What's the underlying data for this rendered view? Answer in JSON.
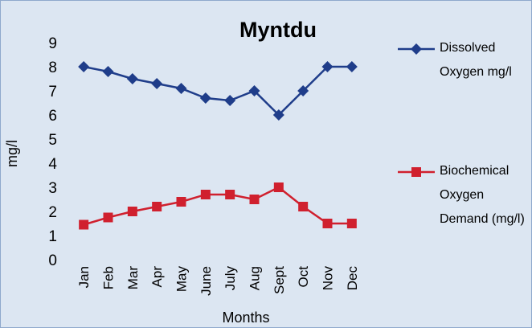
{
  "chart_data": {
    "type": "line",
    "title": "Myntdu",
    "x_label": "Months",
    "y_label": "mg/l",
    "categories": [
      "Jan",
      "Feb",
      "Mar",
      "Apr",
      "May",
      "June",
      "July",
      "Aug",
      "Sept",
      "Oct",
      "Nov",
      "Dec"
    ],
    "series": [
      {
        "name": "Dissolved Oxygen mg/l",
        "color": "#1f3d8a",
        "marker": "diamond",
        "values": [
          8,
          7.8,
          7.5,
          7.3,
          7.1,
          6.7,
          6.6,
          7,
          6,
          7,
          8,
          8
        ]
      },
      {
        "name": "Biochemical Oxygen Demand (mg/l)",
        "color": "#d0202e",
        "marker": "square",
        "values": [
          1.45,
          1.75,
          2,
          2.2,
          2.4,
          2.7,
          2.7,
          2.5,
          3,
          2.2,
          1.5,
          1.5
        ]
      }
    ],
    "ylim": [
      0,
      9
    ],
    "yticks": [
      0,
      1,
      2,
      3,
      4,
      5,
      6,
      7,
      8,
      9
    ],
    "grid": false,
    "legend": "right"
  }
}
